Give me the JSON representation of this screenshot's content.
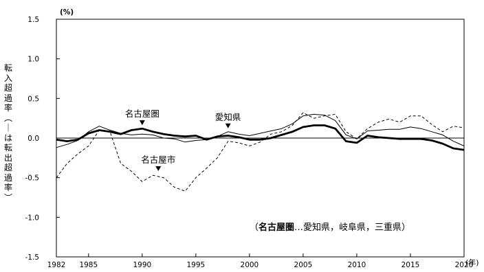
{
  "chart_data": {
    "type": "line",
    "title": "",
    "y_unit": "(%)",
    "x_unit": "(年)",
    "ylabel": "転入超過率（ーは転出超過率）",
    "xlabel": "",
    "xlim": [
      1982,
      2020
    ],
    "ylim": [
      -1.5,
      1.5
    ],
    "x_ticks": [
      1982,
      1985,
      1990,
      1995,
      2000,
      2005,
      2010,
      2015,
      2020
    ],
    "x_tick_labels": [
      "1982",
      "1985",
      "1990",
      "1995",
      "2000",
      "2005",
      "2010",
      "2015",
      "2020"
    ],
    "y_ticks": [
      -1.5,
      -1.0,
      -0.5,
      0.0,
      0.5,
      1.0,
      1.5
    ],
    "y_tick_labels": [
      "-1.5",
      "-1.0",
      "-0.5",
      "0.0",
      "0.5",
      "1.0",
      "1.5"
    ],
    "grid": false,
    "zero_line": true,
    "x": [
      1982,
      1983,
      1984,
      1985,
      1986,
      1987,
      1988,
      1989,
      1990,
      1991,
      1992,
      1993,
      1994,
      1995,
      1996,
      1997,
      1998,
      1999,
      2000,
      2001,
      2002,
      2003,
      2004,
      2005,
      2006,
      2007,
      2008,
      2009,
      2010,
      2011,
      2012,
      2013,
      2014,
      2015,
      2016,
      2017,
      2018,
      2019,
      2020
    ],
    "series": [
      {
        "name": "名古屋圏",
        "style": "thick-solid",
        "color": "#000000",
        "values": [
          -0.02,
          -0.04,
          -0.02,
          0.06,
          0.1,
          0.08,
          0.05,
          0.1,
          0.12,
          0.08,
          0.05,
          0.03,
          0.02,
          0.03,
          -0.02,
          0.02,
          0.03,
          0.01,
          -0.02,
          -0.02,
          0.0,
          0.04,
          0.08,
          0.14,
          0.16,
          0.16,
          0.12,
          -0.04,
          -0.06,
          0.03,
          0.01,
          0.0,
          -0.01,
          -0.01,
          -0.01,
          -0.03,
          -0.07,
          -0.13,
          -0.15
        ]
      },
      {
        "name": "愛知県",
        "style": "thin-solid",
        "color": "#000000",
        "values": [
          -0.12,
          -0.08,
          -0.03,
          0.08,
          0.15,
          0.1,
          0.06,
          0.04,
          0.05,
          0.04,
          0.0,
          -0.01,
          -0.05,
          -0.03,
          -0.02,
          0.02,
          0.08,
          0.05,
          0.03,
          0.06,
          0.09,
          0.12,
          0.18,
          0.28,
          0.3,
          0.29,
          0.22,
          0.04,
          -0.01,
          0.09,
          0.1,
          0.11,
          0.11,
          0.14,
          0.12,
          0.08,
          0.04,
          -0.04,
          -0.1
        ]
      },
      {
        "name": "名古屋市",
        "style": "dashed",
        "color": "#000000",
        "values": [
          -0.5,
          -0.32,
          -0.2,
          -0.1,
          0.1,
          0.08,
          -0.32,
          -0.42,
          -0.55,
          -0.47,
          -0.5,
          -0.62,
          -0.67,
          -0.5,
          -0.38,
          -0.25,
          -0.04,
          -0.06,
          -0.1,
          -0.05,
          0.05,
          0.08,
          0.16,
          0.32,
          0.25,
          0.28,
          0.3,
          0.08,
          -0.01,
          0.12,
          0.2,
          0.24,
          0.2,
          0.28,
          0.28,
          0.17,
          0.08,
          0.15,
          0.13
        ]
      }
    ],
    "annotations": [
      {
        "text": "名古屋圏",
        "x": 1990,
        "y": 0.12
      },
      {
        "text": "愛知県",
        "x": 1998,
        "y": 0.08
      },
      {
        "text": "名古屋市",
        "x": 1991.5,
        "y": -0.46
      }
    ],
    "note": "（名古屋圏…愛知県，岐阜県，三重県）",
    "note_bold": "名古屋圏",
    "note_parts": [
      "（",
      "名古屋圏",
      "…愛知県，岐阜県，三重県）"
    ]
  }
}
